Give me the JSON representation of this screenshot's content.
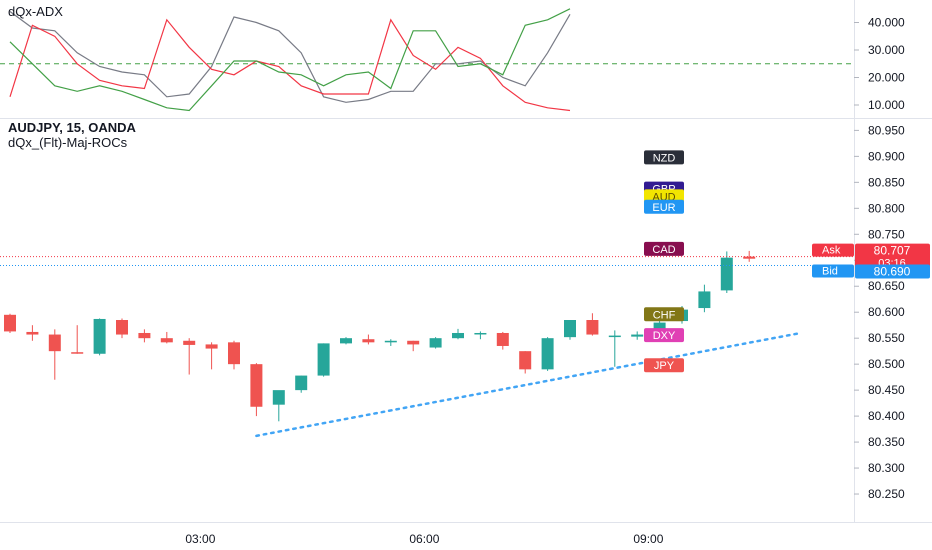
{
  "adx_pane": {
    "title": "dQx-ADX",
    "y_ticks": [
      "40.000",
      "30.000",
      "20.000",
      "10.000"
    ],
    "ylim": [
      6,
      46
    ],
    "reference_level": 25
  },
  "main_pane": {
    "title": "AUDJPY, 15, OANDA",
    "subtitle": "dQx_(Flt)-Maj-ROCs",
    "y_ticks": [
      "80.950",
      "80.900",
      "80.850",
      "80.800",
      "80.750",
      "80.700",
      "80.650",
      "80.600",
      "80.550",
      "80.500",
      "80.450",
      "80.400",
      "80.350",
      "80.300",
      "80.250"
    ],
    "ylim": [
      80.2,
      80.97
    ]
  },
  "x_axis": {
    "labels": [
      "03:00",
      "06:00",
      "09:00"
    ]
  },
  "price_labels": {
    "ask": {
      "label": "Ask",
      "value": "80.707"
    },
    "countdown": "03:16",
    "bid": {
      "label": "Bid",
      "value": "80.690"
    }
  },
  "currency_labels": [
    {
      "text": "NZD",
      "color": "#2a2e39",
      "text_color": "#ffffff",
      "value": 80.898
    },
    {
      "text": "GBP",
      "color": "#311b92",
      "text_color": "#ffffff",
      "value": 80.838
    },
    {
      "text": "AUD",
      "color": "#f2e500",
      "text_color": "#5d4e00",
      "value": 80.823
    },
    {
      "text": "EUR",
      "color": "#2196f3",
      "text_color": "#ffffff",
      "value": 80.803
    },
    {
      "text": "CAD",
      "color": "#880e4f",
      "text_color": "#ffffff",
      "value": 80.722
    },
    {
      "text": "CHF",
      "color": "#827717",
      "text_color": "#ffffff",
      "value": 80.596
    },
    {
      "text": "DXY",
      "color": "#e040b4",
      "text_color": "#ffffff",
      "value": 80.556
    },
    {
      "text": "JPY",
      "color": "#ef5350",
      "text_color": "#ffffff",
      "value": 80.498
    }
  ],
  "colors": {
    "up": "#26a69a",
    "down": "#ef5350",
    "adx_gray": "#787b86",
    "adx_red": "#f23645",
    "adx_green": "#43a047",
    "trendline": "#42a5f5",
    "ask": "#f23645",
    "bid": "#2196f3"
  },
  "chart_data": [
    {
      "type": "line",
      "title": "dQx-ADX",
      "x_index": [
        0,
        1,
        2,
        3,
        4,
        5,
        6,
        7,
        8,
        9,
        10,
        11,
        12,
        13,
        14,
        15,
        16,
        17,
        18,
        19,
        20,
        21,
        22,
        23,
        24,
        25
      ],
      "series": [
        {
          "name": "",
          "color": "gray",
          "values": [
            44,
            38,
            37,
            29,
            24,
            22,
            21,
            13,
            14,
            24,
            42,
            40,
            37,
            29,
            13,
            11,
            12,
            15,
            15,
            25,
            25,
            26,
            20,
            17,
            29,
            43
          ]
        },
        {
          "name": "",
          "color": "red",
          "values": [
            13,
            39,
            35,
            25,
            19,
            17,
            16,
            41,
            31,
            23,
            21,
            26,
            24,
            17,
            14,
            14,
            14,
            41,
            28,
            23,
            31,
            27,
            17,
            11,
            9,
            8
          ]
        },
        {
          "name": "",
          "color": "green",
          "values": [
            33,
            25,
            17,
            15,
            17,
            15,
            12,
            9,
            8,
            17,
            26,
            26,
            22,
            21,
            17,
            21,
            22,
            16,
            37,
            37,
            24,
            25,
            21,
            39,
            41,
            45
          ]
        }
      ],
      "reference_line": 25,
      "ylim": [
        6,
        46
      ]
    },
    {
      "type": "candlestick",
      "title": "AUDJPY, 15, OANDA",
      "subtitle": "dQx_(Flt)-Maj-ROCs",
      "x_labels": [
        "03:00",
        "06:00",
        "09:00"
      ],
      "ohlc": [
        {
          "o": 80.595,
          "h": 80.597,
          "l": 80.56,
          "c": 80.563
        },
        {
          "o": 80.562,
          "h": 80.575,
          "l": 80.545,
          "c": 80.557
        },
        {
          "o": 80.557,
          "h": 80.567,
          "l": 80.47,
          "c": 80.525
        },
        {
          "o": 80.523,
          "h": 80.575,
          "l": 80.52,
          "c": 80.522
        },
        {
          "o": 80.52,
          "h": 80.588,
          "l": 80.517,
          "c": 80.587
        },
        {
          "o": 80.585,
          "h": 80.588,
          "l": 80.55,
          "c": 80.557
        },
        {
          "o": 80.56,
          "h": 80.567,
          "l": 80.542,
          "c": 80.55
        },
        {
          "o": 80.55,
          "h": 80.562,
          "l": 80.54,
          "c": 80.542
        },
        {
          "o": 80.545,
          "h": 80.55,
          "l": 80.48,
          "c": 80.537
        },
        {
          "o": 80.538,
          "h": 80.542,
          "l": 80.49,
          "c": 80.53
        },
        {
          "o": 80.542,
          "h": 80.545,
          "l": 80.49,
          "c": 80.5
        },
        {
          "o": 80.5,
          "h": 80.502,
          "l": 80.4,
          "c": 80.418
        },
        {
          "o": 80.422,
          "h": 80.448,
          "l": 80.39,
          "c": 80.45
        },
        {
          "o": 80.45,
          "h": 80.478,
          "l": 80.445,
          "c": 80.478
        },
        {
          "o": 80.478,
          "h": 80.54,
          "l": 80.476,
          "c": 80.54
        },
        {
          "o": 80.54,
          "h": 80.552,
          "l": 80.538,
          "c": 80.55
        },
        {
          "o": 80.548,
          "h": 80.557,
          "l": 80.538,
          "c": 80.542
        },
        {
          "o": 80.542,
          "h": 80.548,
          "l": 80.535,
          "c": 80.545
        },
        {
          "o": 80.545,
          "h": 80.545,
          "l": 80.525,
          "c": 80.538
        },
        {
          "o": 80.532,
          "h": 80.552,
          "l": 80.53,
          "c": 80.55
        },
        {
          "o": 80.55,
          "h": 80.568,
          "l": 80.548,
          "c": 80.56
        },
        {
          "o": 80.558,
          "h": 80.563,
          "l": 80.548,
          "c": 80.56
        },
        {
          "o": 80.56,
          "h": 80.562,
          "l": 80.528,
          "c": 80.535
        },
        {
          "o": 80.525,
          "h": 80.525,
          "l": 80.482,
          "c": 80.49
        },
        {
          "o": 80.49,
          "h": 80.552,
          "l": 80.487,
          "c": 80.55
        },
        {
          "o": 80.552,
          "h": 80.582,
          "l": 80.547,
          "c": 80.585
        },
        {
          "o": 80.585,
          "h": 80.598,
          "l": 80.555,
          "c": 80.557
        },
        {
          "o": 80.555,
          "h": 80.565,
          "l": 80.495,
          "c": 80.555
        },
        {
          "o": 80.553,
          "h": 80.563,
          "l": 80.547,
          "c": 80.557
        },
        {
          "o": 80.56,
          "h": 80.583,
          "l": 80.555,
          "c": 80.58
        },
        {
          "o": 80.583,
          "h": 80.612,
          "l": 80.578,
          "c": 80.605
        },
        {
          "o": 80.608,
          "h": 80.653,
          "l": 80.6,
          "c": 80.64
        },
        {
          "o": 80.642,
          "h": 80.717,
          "l": 80.637,
          "c": 80.705
        },
        {
          "o": 80.707,
          "h": 80.718,
          "l": 80.697,
          "c": 80.703
        }
      ],
      "trendline": {
        "from": {
          "index": 11.0,
          "price": 80.362
        },
        "to": {
          "index": 35.3,
          "price": 80.56
        }
      },
      "ylim": [
        80.2,
        80.97
      ]
    }
  ]
}
